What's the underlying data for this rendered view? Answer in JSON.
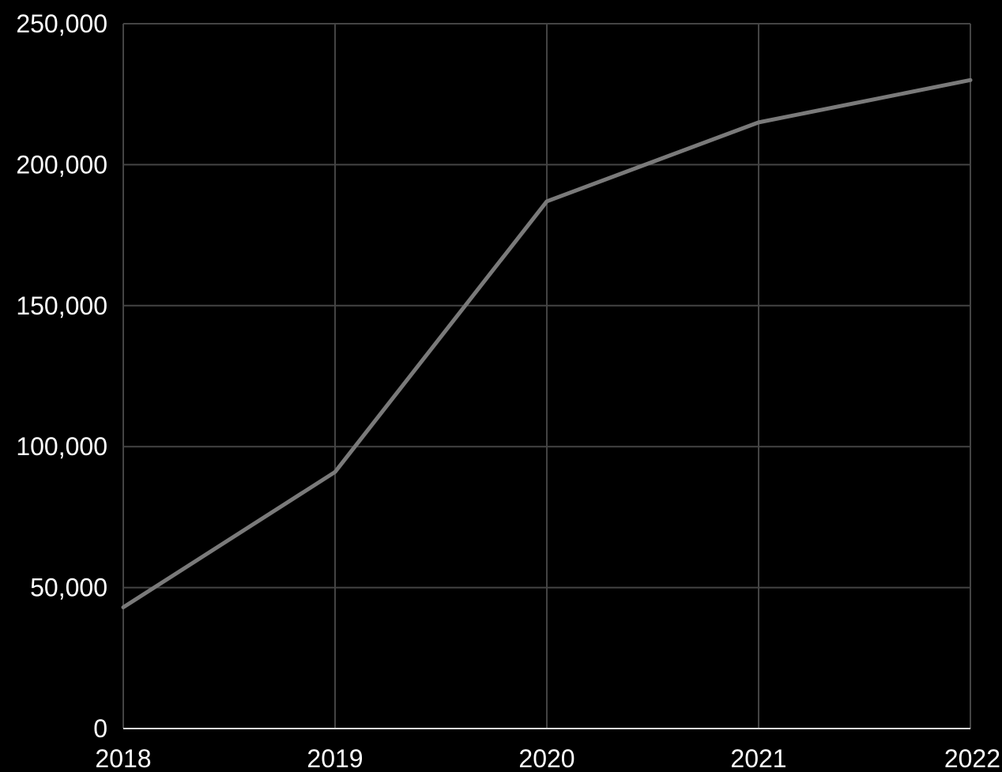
{
  "chart_data": {
    "type": "line",
    "title": "",
    "xlabel": "",
    "ylabel": "",
    "x": [
      "2018",
      "2019",
      "2020",
      "2021",
      "2022"
    ],
    "series": [
      {
        "values": [
          43000,
          91000,
          187000,
          215000,
          230000
        ],
        "color": "#7a7a7a"
      }
    ],
    "ylim": [
      0,
      250000
    ],
    "y_ticks": [
      0,
      50000,
      100000,
      150000,
      200000,
      250000
    ],
    "y_tick_labels": [
      "0",
      "50,000",
      "100,000",
      "150,000",
      "200,000",
      "250,000"
    ],
    "x_tick_labels": [
      "2018",
      "2019",
      "2020",
      "2021",
      "2022"
    ],
    "grid": true,
    "legend": "none",
    "colors": {
      "background": "#000000",
      "grid": "#444444",
      "axis": "#d9d9d9",
      "text": "#ffffff"
    }
  }
}
